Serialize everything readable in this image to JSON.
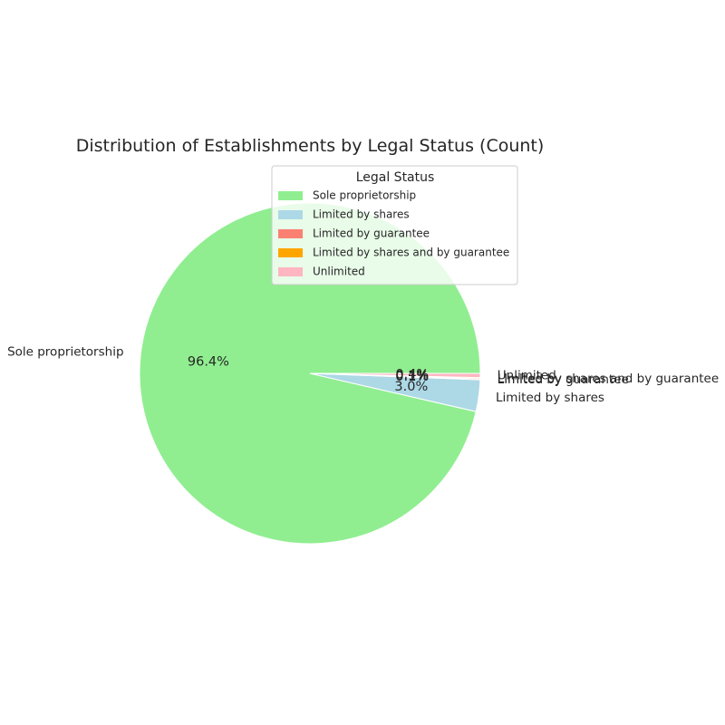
{
  "chart_data": {
    "type": "pie",
    "title": "Distribution of Establishments by Legal Status (Count)",
    "legend_title": "Legal Status",
    "legend_placement": "top-right",
    "start_angle_deg": 0,
    "direction": "counterclockwise",
    "categories": [
      "Sole proprietorship",
      "Limited by shares",
      "Limited by guarantee",
      "Limited by shares and by guarantee",
      "Unlimited"
    ],
    "values": [
      96.4,
      3.0,
      0.1,
      0.1,
      0.4
    ],
    "percent_labels": [
      "96.4%",
      "3.0%",
      "0.1%",
      "0.1%",
      "0.4%"
    ],
    "colors": [
      "#90ee90",
      "#add8e6",
      "#fa8072",
      "#ffa500",
      "#ffb6c1"
    ]
  }
}
